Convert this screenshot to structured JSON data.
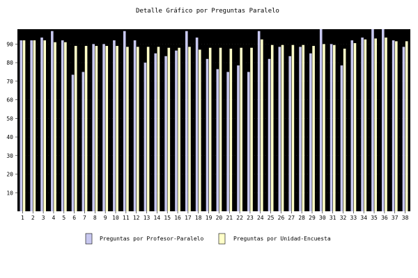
{
  "chart_data": {
    "type": "bar",
    "title": "Detalle Gráfico por Preguntas Paralelo",
    "xlabel": "",
    "ylabel": "",
    "ylim": [
      0,
      98
    ],
    "yticks": [
      10,
      20,
      30,
      40,
      50,
      60,
      70,
      80,
      90
    ],
    "categories": [
      "1",
      "2",
      "3",
      "4",
      "5",
      "6",
      "7",
      "8",
      "9",
      "10",
      "11",
      "12",
      "13",
      "14",
      "15",
      "16",
      "17",
      "18",
      "19",
      "20",
      "21",
      "22",
      "23",
      "24",
      "25",
      "26",
      "27",
      "28",
      "29",
      "30",
      "31",
      "32",
      "33",
      "34",
      "35",
      "36",
      "37",
      "38"
    ],
    "series": [
      {
        "name": "Preguntas por Profesor-Paralelo",
        "color": "#c8c8f0",
        "values": [
          92,
          92,
          93.5,
          97,
          92,
          73.5,
          75,
          90,
          90,
          92,
          97,
          92,
          80,
          85,
          83.5,
          86.5,
          97,
          93.5,
          82,
          76.5,
          75,
          78.5,
          75,
          97,
          82,
          88.5,
          83.5,
          88.5,
          85,
          98,
          90,
          78.5,
          92,
          93.5,
          98,
          98,
          92,
          88.5
        ]
      },
      {
        "name": "Preguntas por Unidad-Encuesta",
        "color": "#ffffc8",
        "values": [
          92,
          92,
          92,
          91,
          91,
          89,
          89,
          89,
          89,
          89,
          88.5,
          88.5,
          88.5,
          88.5,
          88,
          88,
          88.5,
          87,
          88,
          88,
          87.5,
          88,
          88,
          92.5,
          89.5,
          89.5,
          89.5,
          89.5,
          89,
          90,
          89.5,
          87.5,
          90.5,
          92.5,
          93,
          93.5,
          91.5,
          91.5
        ]
      }
    ],
    "legend": "bottom",
    "background": "#000000"
  }
}
